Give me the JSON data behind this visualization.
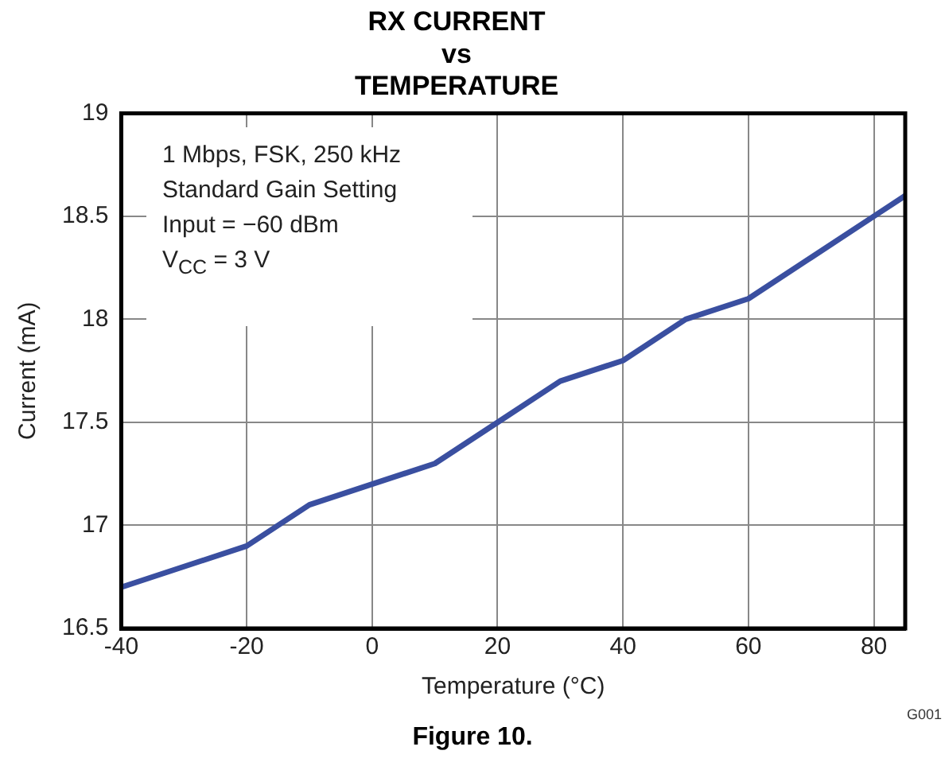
{
  "chart_data": {
    "type": "line",
    "title": [
      "RX CURRENT",
      "vs",
      "TEMPERATURE"
    ],
    "xlabel": "Temperature (°C)",
    "ylabel": "Current (mA)",
    "x": [
      -40,
      -20,
      -10,
      0,
      10,
      20,
      30,
      40,
      50,
      60,
      70,
      80,
      85
    ],
    "series": [
      {
        "color": "#3a4fa0",
        "values": [
          16.7,
          16.9,
          17.1,
          17.2,
          17.3,
          17.5,
          17.7,
          17.8,
          18.0,
          18.1,
          18.3,
          18.5,
          18.6
        ]
      }
    ],
    "xlim": [
      -40,
      85
    ],
    "xticks": [
      -40,
      -20,
      0,
      20,
      40,
      60,
      80
    ],
    "ylim": [
      16.5,
      19
    ],
    "yticks": [
      16.5,
      17,
      17.5,
      18,
      18.5,
      19
    ],
    "grid": true,
    "marker": "none",
    "line_style": "solid",
    "annotations": [
      "1 Mbps, FSK, 250 kHz",
      "Standard Gain Setting",
      "Input = −60 dBm",
      "V$_{CC}$ = 3 V",
      "G001",
      "Figure 10."
    ]
  }
}
